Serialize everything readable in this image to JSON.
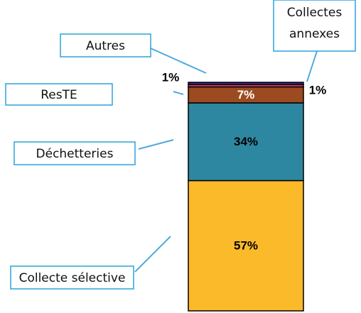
{
  "chart_data": {
    "type": "bar",
    "series": [
      {
        "name": "Collecte sélective",
        "color": "#fbba29",
        "values": [
          57
        ],
        "value_labels": [
          "57%"
        ]
      },
      {
        "name": "Déchetteries",
        "color": "#2e87a0",
        "values": [
          34
        ],
        "value_labels": [
          "34%"
        ]
      },
      {
        "name": "ResTE",
        "color": "#9c4a1f",
        "values": [
          7
        ],
        "value_labels": [
          "7%"
        ]
      },
      {
        "name": "Autres",
        "color": "#e8357a",
        "values": [
          1
        ],
        "value_labels": [
          "1%"
        ]
      },
      {
        "name": "Collectes annexes",
        "color": "#3b2a86",
        "values": [
          1
        ],
        "value_labels": [
          "1%"
        ]
      }
    ],
    "ylim": [
      0,
      100
    ]
  }
}
